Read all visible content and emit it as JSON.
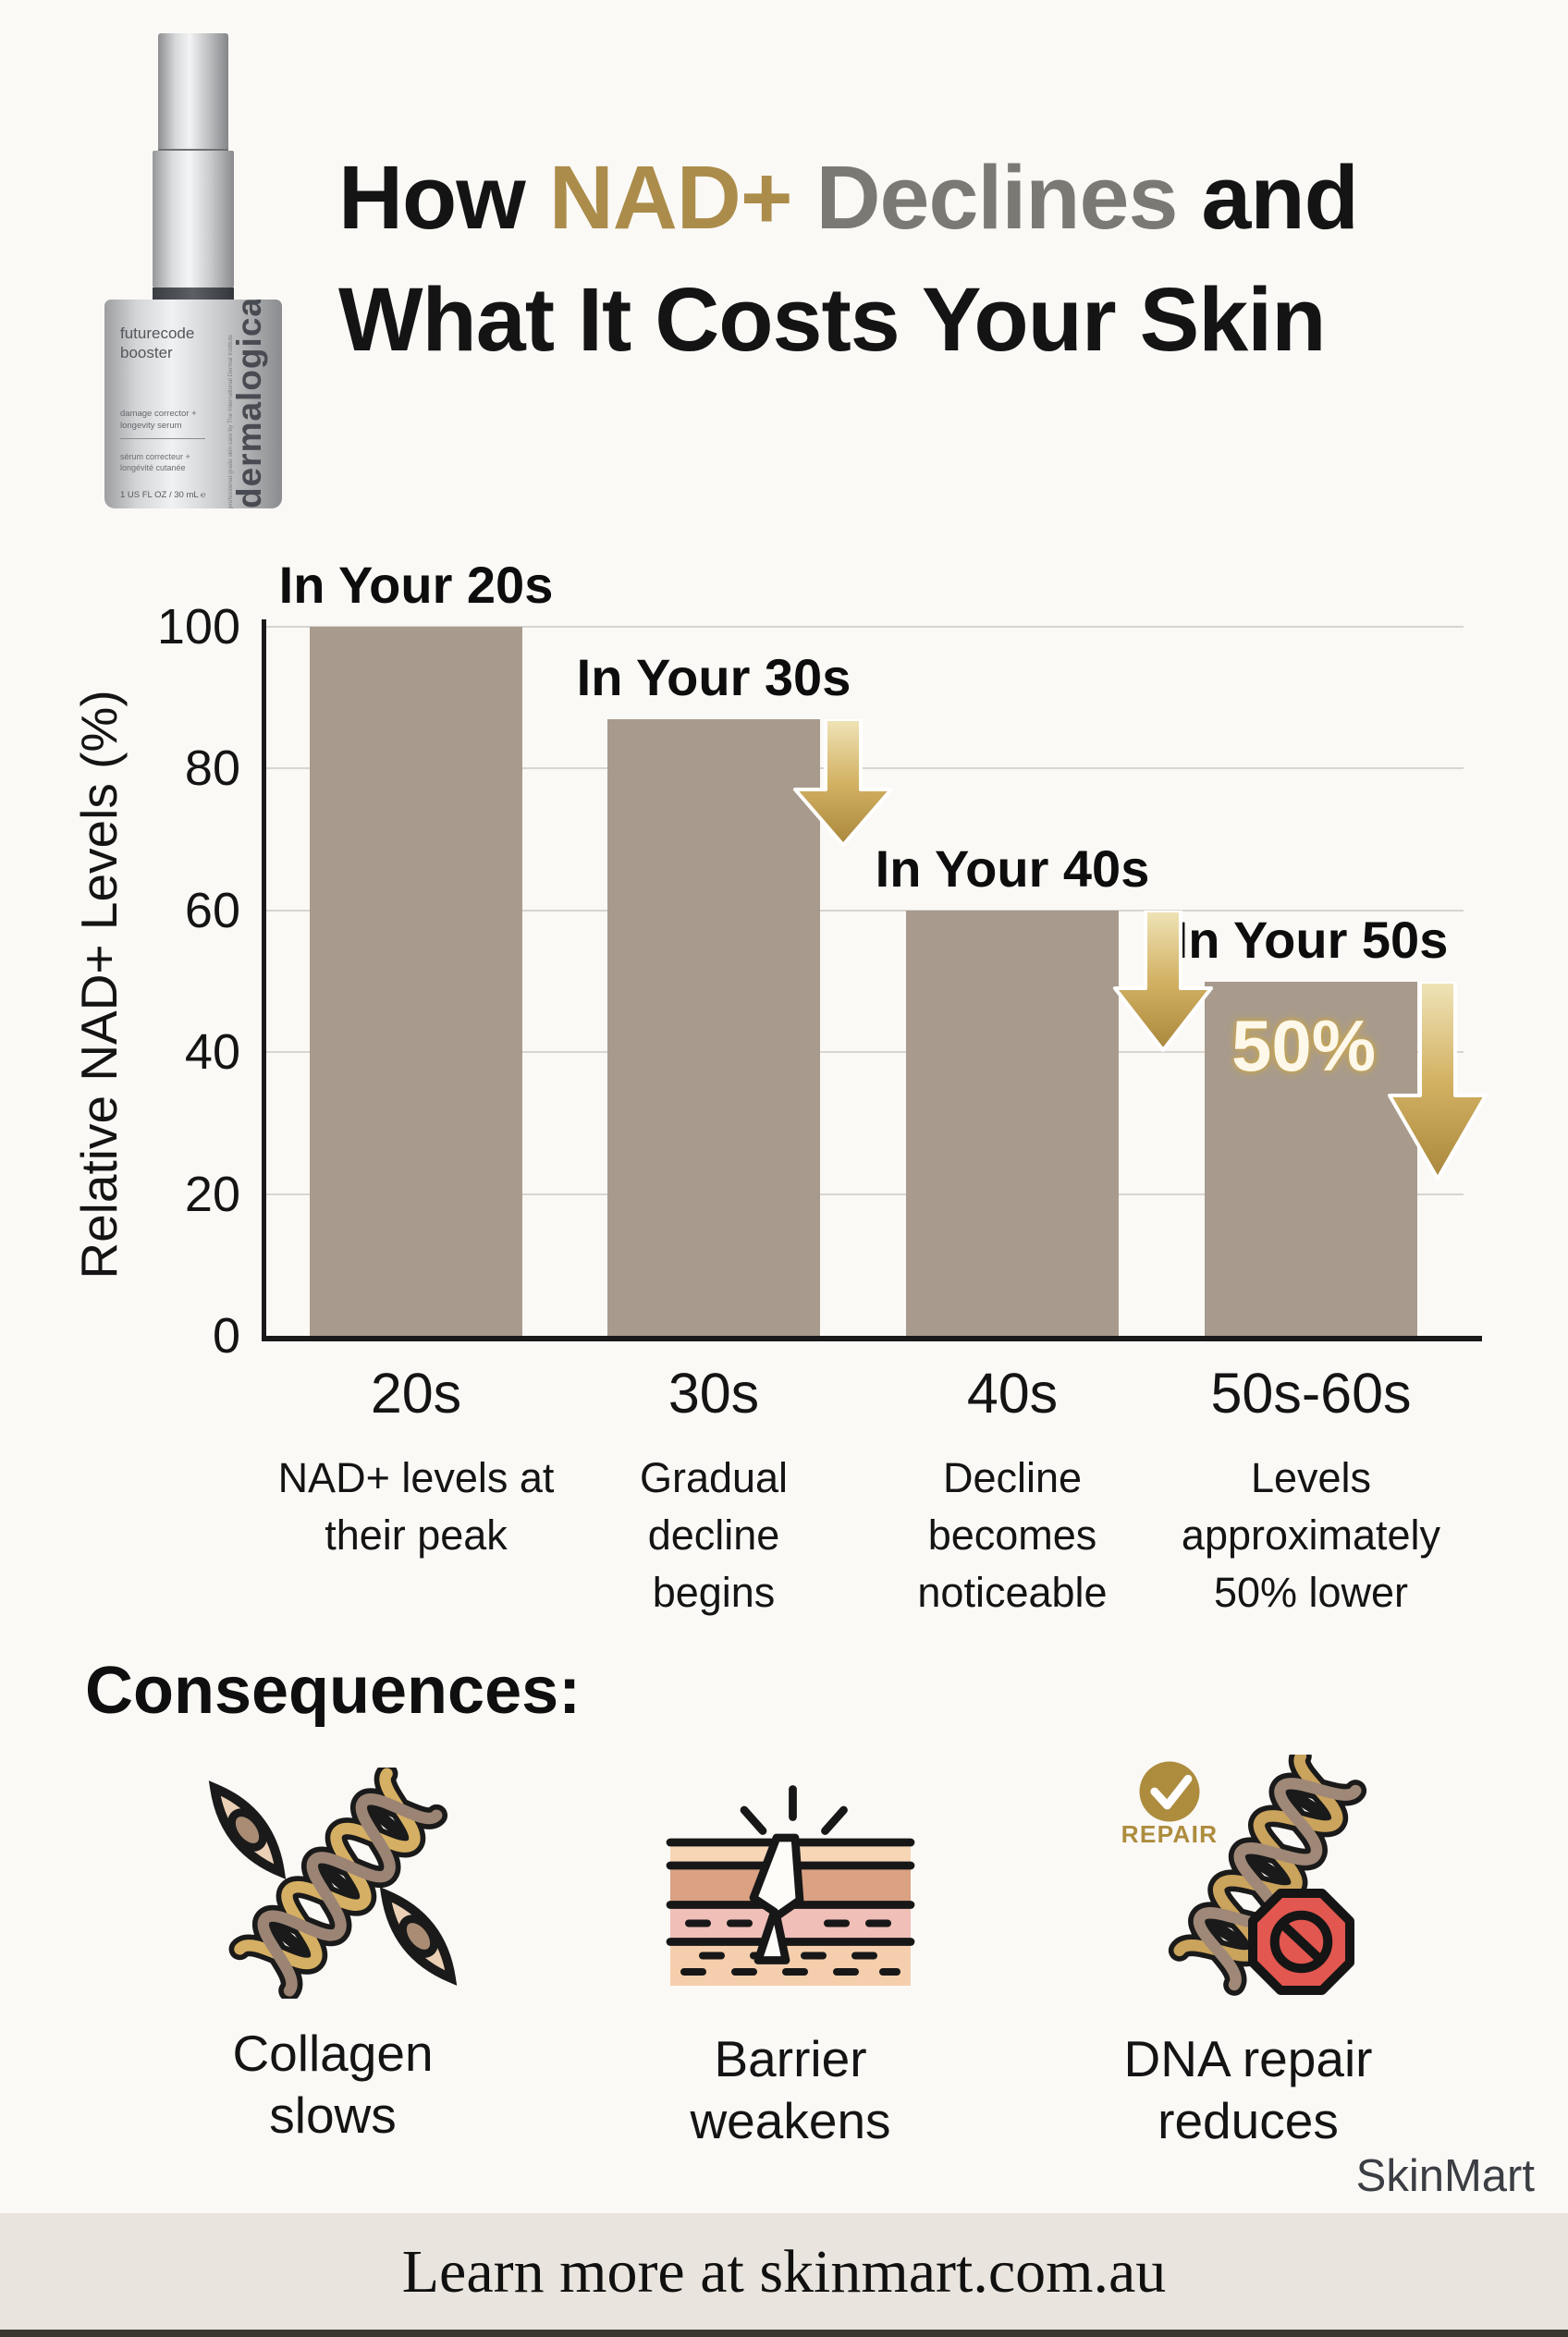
{
  "theme": {
    "page_bg": "#fbf9f6",
    "footer_bg": "#e9e5de",
    "accent_gold": "#ab8c4a",
    "title_gray": "#7b7974",
    "text_black": "#141414",
    "bar_fill": "#a89b8d",
    "grid_color": "#d8d5d1",
    "arrow_gradient": [
      "#efe4b8",
      "#d3b264",
      "#a9873c"
    ],
    "callout_cream": "#fdf8ea",
    "stop_sign_red": "#e2574f",
    "watermark_color": "#3b3e43"
  },
  "product": {
    "brand": "dermalogica",
    "line1": "futurecode",
    "line2": "booster",
    "desc": "damage corrector + longevity serum",
    "desc_fr": "sérum correcteur + longévité cutanée",
    "volume": "1 US FL OZ / 30 mL ℮",
    "side_note": "professional-grade skin care by The International Dermal Institute"
  },
  "title": {
    "part_how": "How ",
    "part_nad": "NAD+",
    "part_declines": " Declines",
    "part_and": " and",
    "line2": "What It Costs Your Skin"
  },
  "chart_data": {
    "type": "bar",
    "title": "",
    "xlabel": "",
    "ylabel": "Relative NAD+ Levels (%)",
    "ylim": [
      0,
      100
    ],
    "yticks": [
      0,
      20,
      40,
      60,
      80,
      100
    ],
    "grid": true,
    "legend": null,
    "categories": [
      "20s",
      "30s",
      "40s",
      "50s-60s"
    ],
    "values": [
      100,
      87,
      60,
      50
    ],
    "bar_labels": [
      "In Your 20s",
      "In Your 30s",
      "In Your 40s",
      "In Your 50s"
    ],
    "category_descriptions": [
      "NAD+ levels at their peak",
      "Gradual decline begins",
      "Decline becomes noticeable",
      "Levels approximately 50% lower"
    ],
    "last_bar_callout": "50%",
    "arrows": [
      {
        "from": 87,
        "to": 69
      },
      {
        "from": 60,
        "to": 40
      },
      {
        "from": 50,
        "to": 22
      }
    ]
  },
  "consequences": {
    "heading": "Consequences:",
    "items": [
      {
        "label": "Collagen slows",
        "icon": "collagen-dna-cells-icon"
      },
      {
        "label": "Barrier weakens",
        "icon": "skin-barrier-crack-icon"
      },
      {
        "label": "DNA repair reduces",
        "icon": "dna-repair-stop-icon",
        "badge": "REPAIR"
      }
    ]
  },
  "branding": {
    "watermark": "SkinMart"
  },
  "footer": {
    "text": "Learn more at skinmart.com.au"
  }
}
